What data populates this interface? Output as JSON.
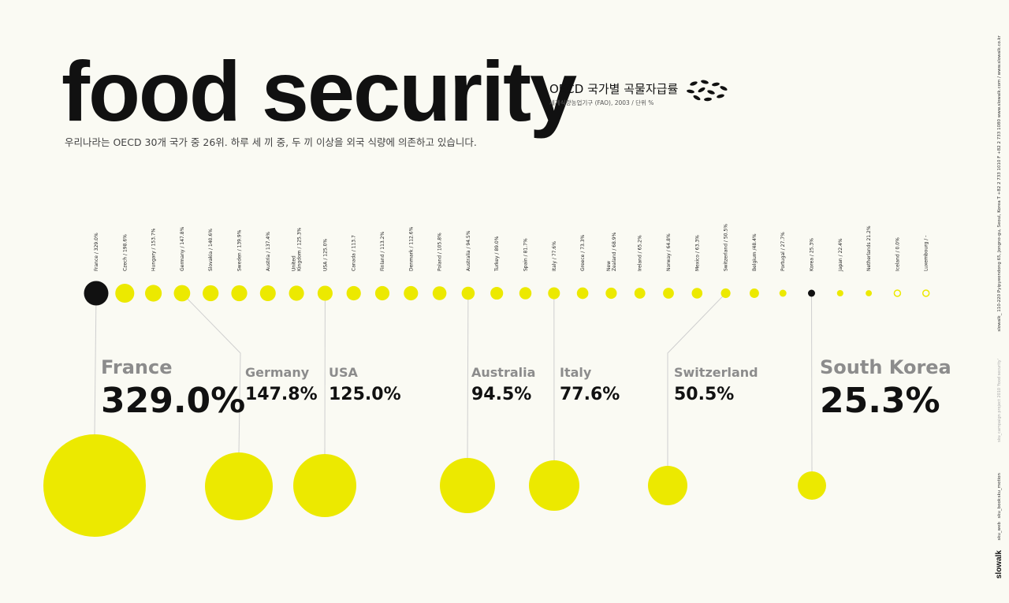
{
  "header": {
    "title": "food security",
    "subtitle": "OECD 국가별 곡물자급률",
    "source": "세계식량농업기구 (FAO), 2003 /  단위 %",
    "description": "우리나라는 OECD 30개 국가 중 26위. 하루 세 끼 중, 두 끼 이상을 외국 식량에 의존하고 있습니다."
  },
  "colors": {
    "accent": "#ece900",
    "highlight": "#111111",
    "background": "#fafaf3"
  },
  "chart_data": {
    "type": "scatter",
    "unit": "%",
    "countries": [
      {
        "label": "France / 329.0%",
        "value": 329.0
      },
      {
        "label": "Czech / 198.6%",
        "value": 198.6
      },
      {
        "label": "Hungary / 153.7%",
        "value": 153.7
      },
      {
        "label": "Germany / 147.8%",
        "value": 147.8
      },
      {
        "label": "Slovakia / 140.6%",
        "value": 140.6
      },
      {
        "label": "Sweden / 139.9%",
        "value": 139.9
      },
      {
        "label": "Austria / 137.4%",
        "value": 137.4
      },
      {
        "label": "United\nKingdom / 125.3%",
        "value": 125.3
      },
      {
        "label": "USA / 125.0%",
        "value": 125.0
      },
      {
        "label": "Canada / 113.7",
        "value": 113.7
      },
      {
        "label": "Finland / 113.2%",
        "value": 113.2
      },
      {
        "label": "Denmark / 112.6%",
        "value": 112.6
      },
      {
        "label": "Poland / 105.8%",
        "value": 105.8
      },
      {
        "label": "Australia / 94.5%",
        "value": 94.5
      },
      {
        "label": "Turkey / 89.0%",
        "value": 89.0
      },
      {
        "label": "Spain / 81.7%",
        "value": 81.7
      },
      {
        "label": "Italy / 77.6%",
        "value": 77.6
      },
      {
        "label": "Greece / 73.3%",
        "value": 73.3
      },
      {
        "label": "New\nZealand / 68.9%",
        "value": 68.9
      },
      {
        "label": "Ireland / 65.2%",
        "value": 65.2
      },
      {
        "label": "Norway / 64.8%",
        "value": 64.8
      },
      {
        "label": "Mexico / 63.3%",
        "value": 63.3
      },
      {
        "label": "Switzerland / 50.5%",
        "value": 50.5
      },
      {
        "label": "Belgium /48.4%",
        "value": 48.4
      },
      {
        "label": "Portugal / 27.7%",
        "value": 27.7
      },
      {
        "label": "Korea / 25.3%",
        "value": 25.3
      },
      {
        "label": "Japan / 22.4%",
        "value": 22.4
      },
      {
        "label": "Netherlands 21.2%",
        "value": 21.2
      },
      {
        "label": "Iceland / 0.0%",
        "value": 0.0
      },
      {
        "label": "Luxembourg / -",
        "value": null
      }
    ],
    "highlights": [
      {
        "name": "France",
        "value_text": "329.0%",
        "value": 329.0,
        "index": 0,
        "emphasis": true
      },
      {
        "name": "Germany",
        "value_text": "147.8%",
        "value": 147.8,
        "index": 3,
        "emphasis": false
      },
      {
        "name": "USA",
        "value_text": "125.0%",
        "value": 125.0,
        "index": 8,
        "emphasis": false
      },
      {
        "name": "Australia",
        "value_text": "94.5%",
        "value": 94.5,
        "index": 13,
        "emphasis": false
      },
      {
        "name": "Italy",
        "value_text": "77.6%",
        "value": 77.6,
        "index": 16,
        "emphasis": false
      },
      {
        "name": "Switzerland",
        "value_text": "50.5%",
        "value": 50.5,
        "index": 22,
        "emphasis": false
      },
      {
        "name": "South Korea",
        "value_text": "25.3%",
        "value": 25.3,
        "index": 25,
        "emphasis": true
      }
    ]
  },
  "sidebar": {
    "info": "slowalk_ 110-220 Pyipyeondong 65, Jongno-gu, Seoul, Korea  T +82 2 733 1010  F +82 2 733 1080  www.slowalk.com / www.slowalk.co.kr",
    "campaign": "sku_campaign  project 2010 'food security'",
    "links": [
      "sku_motion",
      "sku_book",
      "sku_web"
    ],
    "brand": "slowalk"
  }
}
